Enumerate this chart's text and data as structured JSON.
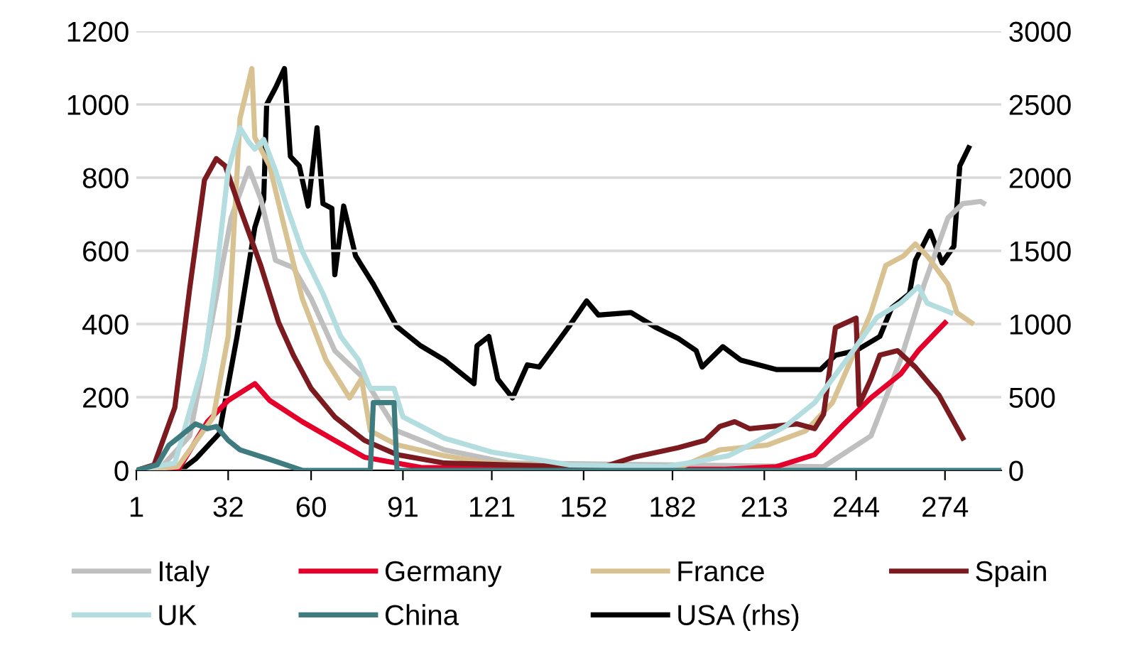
{
  "chart_data": {
    "type": "line",
    "xlim": [
      1,
      293
    ],
    "xticks": [
      1,
      32,
      60,
      91,
      121,
      152,
      182,
      213,
      244,
      274
    ],
    "ylim": [
      0,
      1200
    ],
    "yticks": [
      0,
      200,
      400,
      600,
      800,
      1000,
      1200
    ],
    "y2lim": [
      0,
      3000
    ],
    "y2ticks": [
      0,
      500,
      1000,
      1500,
      2000,
      2500,
      3000
    ],
    "grid": "y",
    "legend": "bottom",
    "marker": "none",
    "line_style": "solid",
    "series": [
      {
        "name": "Italy",
        "color": "#bfbfbf",
        "x": [
          1,
          9,
          19,
          27,
          33,
          39,
          43,
          48,
          54,
          60,
          68,
          78,
          89,
          105,
          127,
          233,
          249,
          259,
          267,
          275,
          280,
          286,
          287
        ],
        "values": [
          0,
          5,
          94,
          431,
          690,
          826,
          742,
          574,
          554,
          470,
          327,
          250,
          108,
          56,
          20,
          10,
          94,
          302,
          509,
          690,
          729,
          735,
          730
        ]
      },
      {
        "name": "Germany",
        "color": "#e4002b",
        "x": [
          1,
          15,
          25,
          32,
          41,
          46,
          57,
          68,
          78,
          97,
          150,
          200,
          217,
          230,
          240,
          249,
          259,
          265,
          274
        ],
        "values": [
          0,
          0,
          133,
          191,
          237,
          191,
          133,
          82,
          36,
          8,
          3,
          3,
          10,
          43,
          127,
          198,
          263,
          327,
          403
        ]
      },
      {
        "name": "France",
        "color": "#d9c291",
        "x": [
          1,
          15,
          27,
          32,
          36,
          40,
          41,
          46,
          51,
          57,
          65,
          73,
          77,
          80,
          89,
          105,
          120,
          150,
          185,
          198,
          214,
          227,
          236,
          243,
          249,
          254,
          260,
          264,
          268,
          275,
          278,
          283
        ],
        "values": [
          0,
          10,
          146,
          366,
          962,
          1098,
          910,
          832,
          664,
          470,
          302,
          198,
          250,
          108,
          70,
          40,
          20,
          10,
          10,
          56,
          69,
          108,
          185,
          315,
          431,
          560,
          586,
          619,
          586,
          509,
          431,
          403
        ]
      },
      {
        "name": "Spain",
        "color": "#7b1a1f",
        "x": [
          1,
          7,
          14,
          19,
          24,
          28,
          31,
          36,
          43,
          49,
          54,
          60,
          68,
          78,
          89,
          105,
          158,
          169,
          184,
          193,
          198,
          203,
          208,
          224,
          230,
          233,
          237,
          244,
          245,
          249,
          252,
          258,
          264,
          272,
          280
        ],
        "values": [
          0,
          15,
          172,
          496,
          793,
          852,
          832,
          716,
          560,
          405,
          315,
          224,
          146,
          82,
          43,
          20,
          8,
          36,
          62,
          82,
          120,
          133,
          114,
          127,
          114,
          153,
          390,
          416,
          179,
          250,
          315,
          327,
          282,
          205,
          88
        ]
      },
      {
        "name": "UK",
        "color": "#b4dde0",
        "x": [
          1,
          14,
          24,
          28,
          32,
          36,
          39,
          41,
          44,
          48,
          52,
          57,
          64,
          70,
          76,
          80,
          88,
          91,
          105,
          121,
          136,
          147,
          180,
          201,
          208,
          220,
          230,
          236,
          243,
          251,
          259,
          265,
          268,
          276
        ],
        "values": [
          0,
          20,
          302,
          535,
          819,
          936,
          897,
          878,
          904,
          819,
          716,
          599,
          483,
          366,
          302,
          224,
          224,
          146,
          88,
          50,
          30,
          15,
          10,
          40,
          69,
          120,
          185,
          250,
          327,
          418,
          457,
          502,
          457,
          431
        ]
      },
      {
        "name": "China",
        "color": "#3f7c80",
        "x": [
          1,
          8,
          12,
          21,
          25,
          28,
          32,
          36,
          46,
          57,
          80,
          81,
          88,
          89,
          150,
          293
        ],
        "values": [
          0,
          15,
          69,
          127,
          114,
          120,
          82,
          56,
          30,
          0,
          0,
          185,
          185,
          0,
          0,
          0
        ]
      },
      {
        "name": "USA (rhs)",
        "color": "#000000",
        "axis": "y2",
        "x": [
          1,
          16,
          21,
          29,
          35,
          41,
          44,
          45,
          48,
          51,
          53,
          56,
          59,
          62,
          64,
          67,
          68,
          71,
          75,
          81,
          89,
          97,
          105,
          115,
          116,
          120,
          123,
          128,
          133,
          137,
          147,
          153,
          157,
          168,
          176,
          184,
          190,
          192,
          199,
          205,
          217,
          232,
          237,
          244,
          252,
          256,
          262,
          264,
          269,
          273,
          277,
          279,
          282
        ],
        "values": [
          0,
          0,
          78,
          252,
          915,
          1660,
          1854,
          2500,
          2614,
          2745,
          2145,
          2080,
          1806,
          2340,
          1822,
          1790,
          1337,
          1806,
          1466,
          1272,
          981,
          851,
          754,
          592,
          851,
          915,
          624,
          495,
          721,
          706,
          981,
          1158,
          1061,
          1078,
          981,
          900,
          818,
          706,
          845,
          754,
          689,
          689,
          786,
          818,
          915,
          1110,
          1207,
          1434,
          1634,
          1417,
          1531,
          2080,
          2204
        ]
      }
    ]
  }
}
